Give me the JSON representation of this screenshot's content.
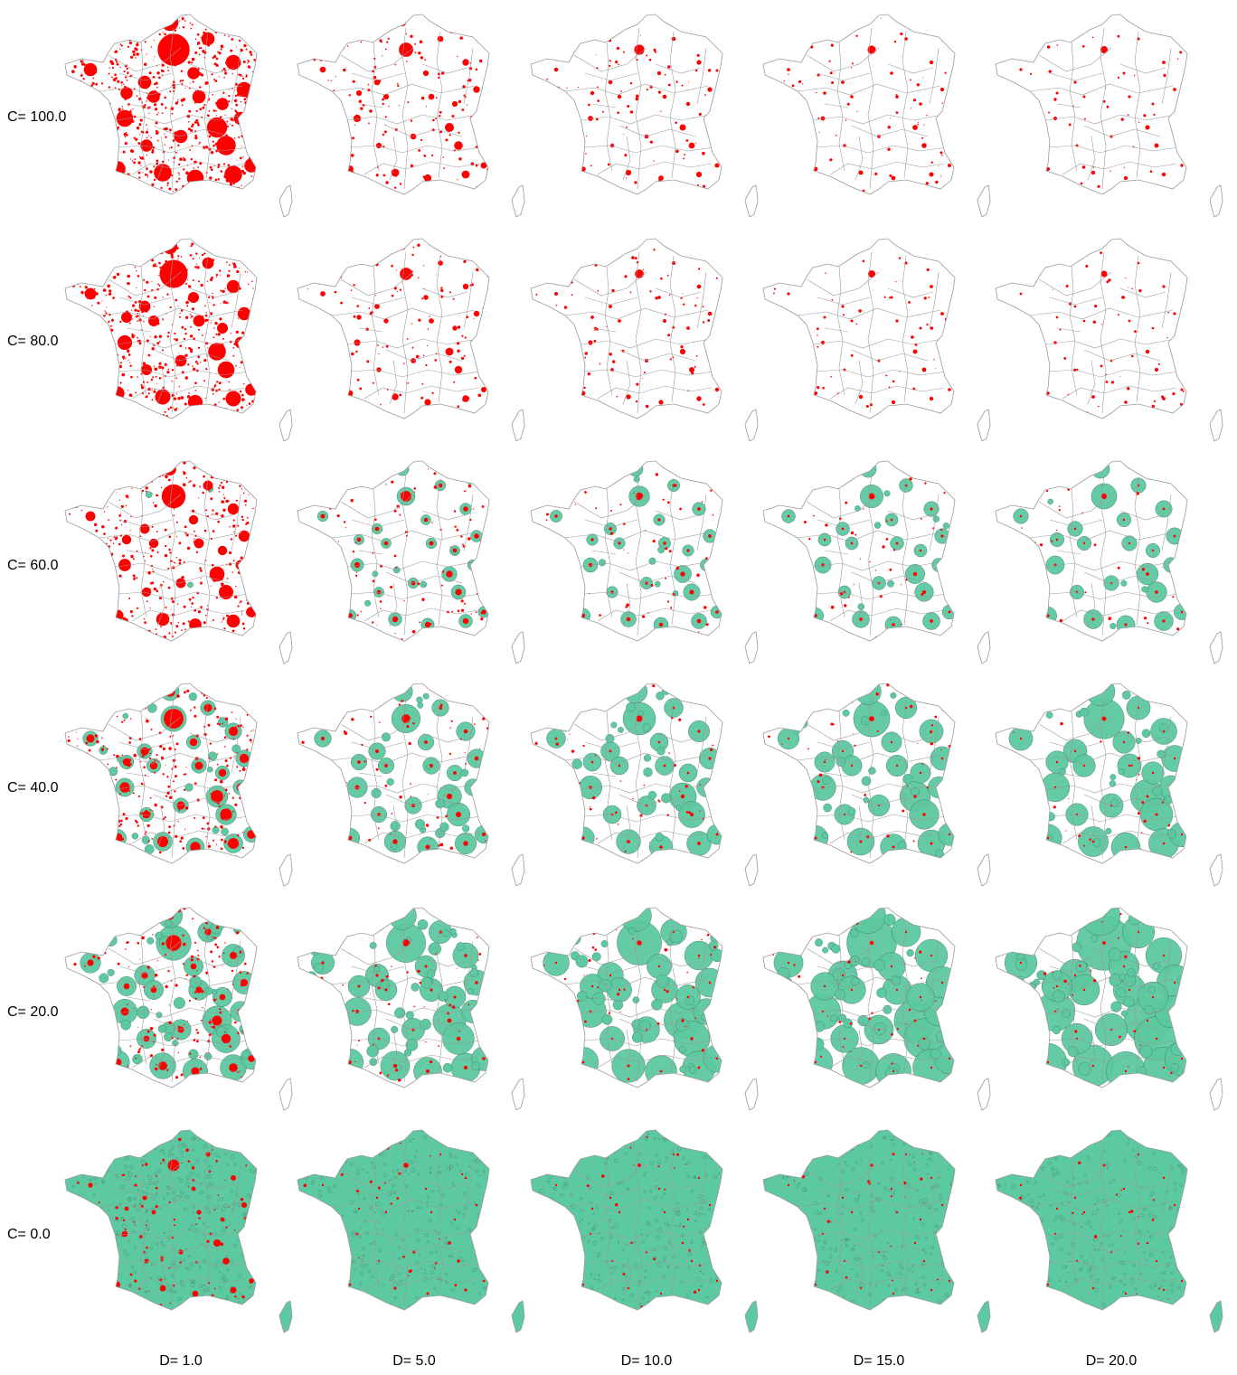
{
  "figure": {
    "row_prefix": "C=",
    "col_prefix": "D=",
    "rows": [
      {
        "label": "C= 100.0",
        "C": 100.0
      },
      {
        "label": "C= 80.0",
        "C": 80.0
      },
      {
        "label": "C= 60.0",
        "C": 60.0
      },
      {
        "label": "C= 40.0",
        "C": 40.0
      },
      {
        "label": "C= 20.0",
        "C": 20.0
      },
      {
        "label": "C= 0.0",
        "C": 0.0
      }
    ],
    "cols": [
      {
        "label": "D= 1.0",
        "D": 1.0
      },
      {
        "label": "D= 5.0",
        "D": 5.0
      },
      {
        "label": "D= 10.0",
        "D": 10.0
      },
      {
        "label": "D= 15.0",
        "D": 15.0
      },
      {
        "label": "D= 20.0",
        "D": 20.0
      }
    ],
    "colors": {
      "background": "#ffffff",
      "border": "#9a9a9a",
      "urban_red": "#ff0000",
      "green_fill": "#5cc9a0",
      "green_outline": "#4a7a6a"
    },
    "map_subject": "France with departmental boundaries and Corsica inset"
  }
}
